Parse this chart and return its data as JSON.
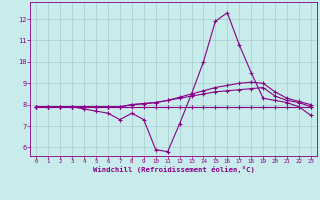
{
  "xlabel": "Windchill (Refroidissement éolien,°C)",
  "x": [
    0,
    1,
    2,
    3,
    4,
    5,
    6,
    7,
    8,
    9,
    10,
    11,
    12,
    13,
    14,
    15,
    16,
    17,
    18,
    19,
    20,
    21,
    22,
    23
  ],
  "line1": [
    7.9,
    7.9,
    7.9,
    7.9,
    7.8,
    7.7,
    7.6,
    7.3,
    7.6,
    7.3,
    5.9,
    5.8,
    7.1,
    8.5,
    10.0,
    11.9,
    12.3,
    10.8,
    9.5,
    8.3,
    8.2,
    8.1,
    7.9,
    7.5
  ],
  "line2": [
    7.9,
    7.9,
    7.9,
    7.9,
    7.9,
    7.9,
    7.9,
    7.9,
    7.9,
    7.9,
    7.9,
    7.9,
    7.9,
    7.9,
    7.9,
    7.9,
    7.9,
    7.9,
    7.9,
    7.9,
    7.9,
    7.9,
    7.9,
    7.9
  ],
  "line3": [
    7.9,
    7.9,
    7.9,
    7.9,
    7.9,
    7.9,
    7.9,
    7.9,
    8.0,
    8.05,
    8.1,
    8.2,
    8.3,
    8.4,
    8.5,
    8.6,
    8.65,
    8.7,
    8.75,
    8.8,
    8.4,
    8.2,
    8.1,
    7.9
  ],
  "line4": [
    7.9,
    7.9,
    7.9,
    7.9,
    7.9,
    7.9,
    7.9,
    7.9,
    8.0,
    8.05,
    8.1,
    8.2,
    8.35,
    8.5,
    8.65,
    8.8,
    8.9,
    9.0,
    9.05,
    9.0,
    8.6,
    8.3,
    8.15,
    8.0
  ],
  "line_color": "#880088",
  "bg_color": "#c8ecec",
  "grid_color": "#aacccc",
  "ylim": [
    5.6,
    12.8
  ],
  "yticks": [
    6,
    7,
    8,
    9,
    10,
    11,
    12
  ],
  "xlim": [
    -0.5,
    23.5
  ]
}
